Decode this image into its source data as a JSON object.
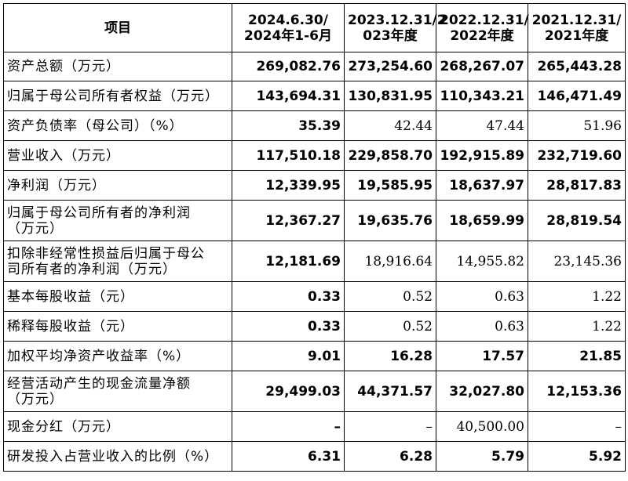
{
  "header": {
    "item": "项目",
    "c1": [
      "2024.6.30/",
      "2024年1-6月"
    ],
    "c2": [
      "2023.12.31/2",
      "023年度"
    ],
    "c3": [
      "2022.12.31/",
      "2022年度"
    ],
    "c4": [
      "2021.12.31/",
      "2021年度"
    ]
  },
  "rows": [
    {
      "label": [
        "资产总额（万元）"
      ],
      "v": [
        "269,082.76",
        "273,254.60",
        "268,267.07",
        "265,443.28"
      ],
      "style": [
        "b",
        "b",
        "b",
        "b"
      ],
      "h": 37
    },
    {
      "label": [
        "归属于母公司所有者权益（万元）"
      ],
      "v": [
        "143,694.31",
        "130,831.95",
        "110,343.21",
        "146,471.49"
      ],
      "style": [
        "b",
        "b",
        "b",
        "b"
      ],
      "h": 38
    },
    {
      "label": [
        "资产负债率（母公司）（%）"
      ],
      "v": [
        "35.39",
        "42.44",
        "47.44",
        "51.96"
      ],
      "style": [
        "b",
        "s",
        "s",
        "s"
      ],
      "h": 38
    },
    {
      "label": [
        "营业收入（万元）"
      ],
      "v": [
        "117,510.18",
        "229,858.70",
        "192,915.89",
        "232,719.60"
      ],
      "style": [
        "b",
        "b",
        "b",
        "b"
      ],
      "h": 38
    },
    {
      "label": [
        "净利润（万元）"
      ],
      "v": [
        "12,339.95",
        "19,585.95",
        "18,637.97",
        "28,817.83"
      ],
      "style": [
        "b",
        "b",
        "b",
        "b"
      ],
      "h": 38
    },
    {
      "label": [
        "归属于母公司所有者的净利润",
        "（万元）"
      ],
      "v": [
        "12,367.27",
        "19,635.76",
        "18,659.99",
        "28,819.54"
      ],
      "style": [
        "b",
        "b",
        "b",
        "b"
      ],
      "h": 52
    },
    {
      "label": [
        "扣除非经常性损益后归属于母公",
        "司所有者的净利润（万元）"
      ],
      "v": [
        "12,181.69",
        "18,916.64",
        "14,955.82",
        "23,145.36"
      ],
      "style": [
        "b",
        "s",
        "s",
        "s"
      ],
      "h": 52
    },
    {
      "label": [
        "基本每股收益（元）"
      ],
      "v": [
        "0.33",
        "0.52",
        "0.63",
        "1.22"
      ],
      "style": [
        "b",
        "s",
        "s",
        "s"
      ],
      "h": 38
    },
    {
      "label": [
        "稀释每股收益（元）"
      ],
      "v": [
        "0.33",
        "0.52",
        "0.63",
        "1.22"
      ],
      "style": [
        "b",
        "s",
        "s",
        "s"
      ],
      "h": 38
    },
    {
      "label": [
        "加权平均净资产收益率（%）"
      ],
      "v": [
        "9.01",
        "16.28",
        "17.57",
        "21.85"
      ],
      "style": [
        "b",
        "b",
        "b",
        "b"
      ],
      "h": 38
    },
    {
      "label": [
        "经营活动产生的现金流量净额",
        "（万元）"
      ],
      "v": [
        "29,499.03",
        "44,371.57",
        "32,027.80",
        "12,153.36"
      ],
      "style": [
        "b",
        "b",
        "b",
        "b"
      ],
      "h": 52
    },
    {
      "label": [
        "现金分红（万元）"
      ],
      "v": [
        "–",
        "–",
        "40,500.00",
        "–"
      ],
      "style": [
        "b",
        "s",
        "s",
        "s"
      ],
      "h": 38
    },
    {
      "label": [
        "研发投入占营业收入的比例（%）"
      ],
      "v": [
        "6.31",
        "6.28",
        "5.79",
        "5.92"
      ],
      "style": [
        "b",
        "b",
        "b",
        "b"
      ],
      "h": 38
    }
  ]
}
